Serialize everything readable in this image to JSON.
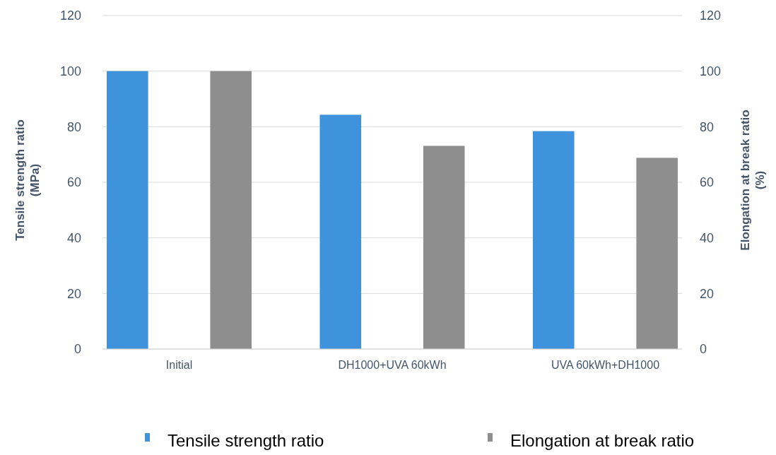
{
  "chart_data": {
    "type": "bar",
    "categories": [
      "Initial",
      "DH1000+UVA 60kWh",
      "UVA 60kWh+DH1000"
    ],
    "series": [
      {
        "name": "Tensile strength ratio",
        "color": "#3f92dc",
        "values": [
          100,
          84.3,
          78.4
        ]
      },
      {
        "name": "Elongation at break ratio",
        "color": "#8e8e8e",
        "values": [
          100,
          73.1,
          68.8
        ]
      }
    ],
    "ylabel": "Tensile strength ratio\n(MPa)",
    "y2label": "Elongation at break ratio\n(%)",
    "ylim": [
      0,
      120
    ],
    "yticks": [
      0,
      20,
      40,
      60,
      80,
      100,
      120
    ],
    "y2lim": [
      0,
      120
    ],
    "y2ticks": [
      0,
      20,
      40,
      60,
      80,
      100,
      120
    ],
    "grid": "y",
    "legend": "bottom"
  }
}
